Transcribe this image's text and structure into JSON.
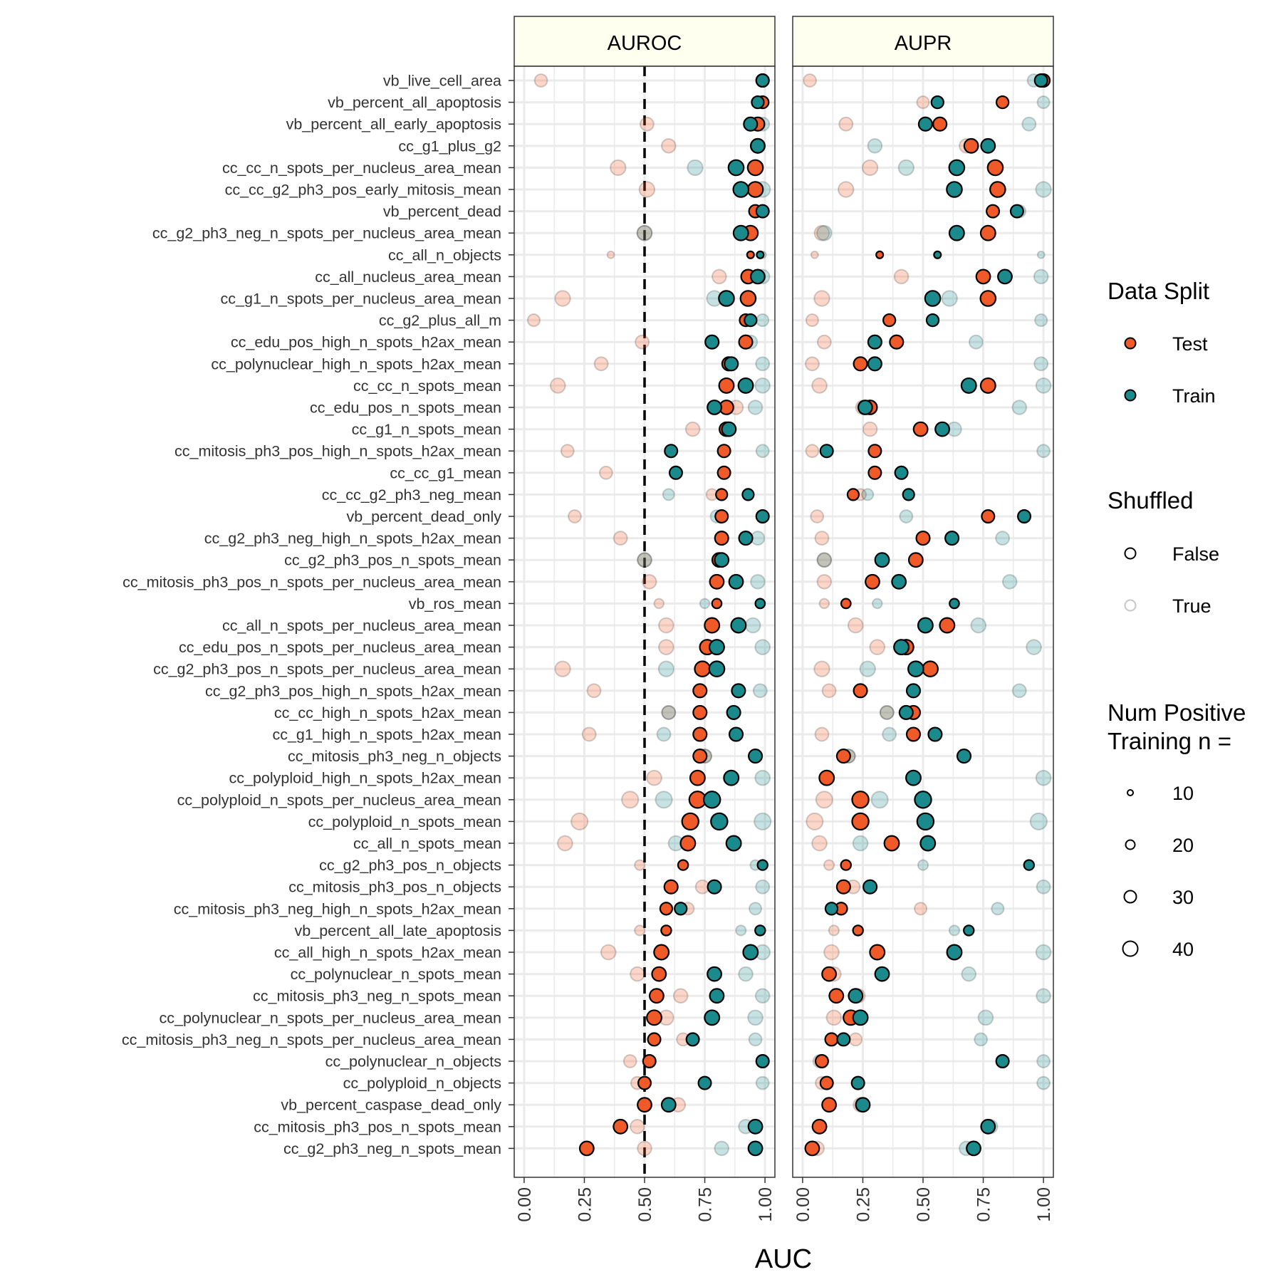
{
  "chart_data": {
    "type": "scatter",
    "facets": [
      "AUROC",
      "AUPR"
    ],
    "xlabel": "AUC",
    "xlim": [
      0,
      1
    ],
    "x_ticks": [
      "0.00",
      "0.25",
      "0.50",
      "0.75",
      "1.00"
    ],
    "reference_line": {
      "facet": "AUROC",
      "x": 0.5,
      "style": "dashed"
    },
    "colors": {
      "Test": "#f05a28",
      "Train": "#1b8a8c",
      "outline": "#000000",
      "strip_fill": "#fffff0",
      "grid": "#ebebeb"
    },
    "legends": {
      "data_split": {
        "title": "Data Split",
        "entries": [
          "Test",
          "Train"
        ]
      },
      "shuffled": {
        "title": "Shuffled",
        "entries": [
          "False",
          "True"
        ]
      },
      "size": {
        "title_lines": [
          "Num Positive",
          "Training n ="
        ],
        "entries": [
          "10",
          "20",
          "30",
          "40"
        ]
      }
    },
    "rows": [
      {
        "label": "vb_live_cell_area",
        "n": 30,
        "auroc": {
          "test": 0.99,
          "train": 0.99,
          "test_shuf": 0.07,
          "train_shuf": 0.99
        },
        "aupr": {
          "test": 1.0,
          "train": 0.99,
          "test_shuf": 0.03,
          "train_shuf": 0.96
        }
      },
      {
        "label": "vb_percent_all_apoptosis",
        "n": 28,
        "auroc": {
          "test": 0.99,
          "train": 0.97,
          "test_shuf": 0.99,
          "train_shuf": 0.99
        },
        "aupr": {
          "test": 0.83,
          "train": 0.56,
          "test_shuf": 0.5,
          "train_shuf": 1.0
        }
      },
      {
        "label": "vb_percent_all_early_apoptosis",
        "n": 33,
        "auroc": {
          "test": 0.97,
          "train": 0.94,
          "test_shuf": 0.51,
          "train_shuf": 0.99
        },
        "aupr": {
          "test": 0.57,
          "train": 0.51,
          "test_shuf": 0.18,
          "train_shuf": 0.94
        }
      },
      {
        "label": "cc_g1_plus_g2",
        "n": 35,
        "auroc": {
          "test": 0.97,
          "train": 0.97,
          "test_shuf": 0.6,
          "train_shuf": 0.97
        },
        "aupr": {
          "test": 0.7,
          "train": 0.77,
          "test_shuf": 0.68,
          "train_shuf": 0.3
        }
      },
      {
        "label": "cc_cc_n_spots_per_nucleus_area_mean",
        "n": 40,
        "auroc": {
          "test": 0.96,
          "train": 0.88,
          "test_shuf": 0.39,
          "train_shuf": 0.71
        },
        "aupr": {
          "test": 0.8,
          "train": 0.64,
          "test_shuf": 0.28,
          "train_shuf": 0.43
        }
      },
      {
        "label": "cc_cc_g2_ph3_pos_early_mitosis_mean",
        "n": 40,
        "auroc": {
          "test": 0.96,
          "train": 0.9,
          "test_shuf": 0.51,
          "train_shuf": 0.99
        },
        "aupr": {
          "test": 0.81,
          "train": 0.63,
          "test_shuf": 0.18,
          "train_shuf": 1.0
        }
      },
      {
        "label": "vb_percent_dead",
        "n": 30,
        "auroc": {
          "test": 0.96,
          "train": 0.99,
          "test_shuf": 0.99,
          "train_shuf": 0.99
        },
        "aupr": {
          "test": 0.79,
          "train": 0.89,
          "test_shuf": 0.79,
          "train_shuf": 0.9
        }
      },
      {
        "label": "cc_g2_ph3_neg_n_spots_per_nucleus_area_mean",
        "n": 38,
        "auroc": {
          "test": 0.94,
          "train": 0.9,
          "test_shuf": 0.5,
          "train_shuf": 0.5
        },
        "aupr": {
          "test": 0.77,
          "train": 0.64,
          "test_shuf": 0.08,
          "train_shuf": 0.09
        }
      },
      {
        "label": "cc_all_n_objects",
        "n": 8,
        "auroc": {
          "test": 0.94,
          "train": 0.98,
          "test_shuf": 0.36,
          "train_shuf": 0.99
        },
        "aupr": {
          "test": 0.32,
          "train": 0.56,
          "test_shuf": 0.05,
          "train_shuf": 0.99
        }
      },
      {
        "label": "cc_all_nucleus_area_mean",
        "n": 35,
        "auroc": {
          "test": 0.93,
          "train": 0.97,
          "test_shuf": 0.81,
          "train_shuf": 0.99
        },
        "aupr": {
          "test": 0.75,
          "train": 0.84,
          "test_shuf": 0.41,
          "train_shuf": 0.99
        }
      },
      {
        "label": "cc_g1_n_spots_per_nucleus_area_mean",
        "n": 40,
        "auroc": {
          "test": 0.93,
          "train": 0.84,
          "test_shuf": 0.16,
          "train_shuf": 0.79
        },
        "aupr": {
          "test": 0.77,
          "train": 0.54,
          "test_shuf": 0.08,
          "train_shuf": 0.61
        }
      },
      {
        "label": "cc_g2_plus_all_m",
        "n": 28,
        "auroc": {
          "test": 0.92,
          "train": 0.94,
          "test_shuf": 0.04,
          "train_shuf": 0.99
        },
        "aupr": {
          "test": 0.36,
          "train": 0.54,
          "test_shuf": 0.04,
          "train_shuf": 0.99
        }
      },
      {
        "label": "cc_edu_pos_high_n_spots_h2ax_mean",
        "n": 33,
        "auroc": {
          "test": 0.92,
          "train": 0.78,
          "test_shuf": 0.49,
          "train_shuf": 0.94
        },
        "aupr": {
          "test": 0.39,
          "train": 0.3,
          "test_shuf": 0.09,
          "train_shuf": 0.72
        }
      },
      {
        "label": "cc_polynuclear_high_n_spots_h2ax_mean",
        "n": 33,
        "auroc": {
          "test": 0.85,
          "train": 0.86,
          "test_shuf": 0.32,
          "train_shuf": 0.99
        },
        "aupr": {
          "test": 0.24,
          "train": 0.3,
          "test_shuf": 0.04,
          "train_shuf": 0.99
        }
      },
      {
        "label": "cc_cc_n_spots_mean",
        "n": 38,
        "auroc": {
          "test": 0.84,
          "train": 0.92,
          "test_shuf": 0.14,
          "train_shuf": 0.99
        },
        "aupr": {
          "test": 0.77,
          "train": 0.69,
          "test_shuf": 0.07,
          "train_shuf": 1.0
        }
      },
      {
        "label": "cc_edu_pos_n_spots_mean",
        "n": 35,
        "auroc": {
          "test": 0.84,
          "train": 0.79,
          "test_shuf": 0.88,
          "train_shuf": 0.96
        },
        "aupr": {
          "test": 0.28,
          "train": 0.26,
          "test_shuf": 0.25,
          "train_shuf": 0.9
        }
      },
      {
        "label": "cc_g1_n_spots_mean",
        "n": 35,
        "auroc": {
          "test": 0.84,
          "train": 0.85,
          "test_shuf": 0.7,
          "train_shuf": 0.85
        },
        "aupr": {
          "test": 0.49,
          "train": 0.58,
          "test_shuf": 0.28,
          "train_shuf": 0.63
        }
      },
      {
        "label": "cc_mitosis_ph3_pos_high_n_spots_h2ax_mean",
        "n": 30,
        "auroc": {
          "test": 0.83,
          "train": 0.61,
          "test_shuf": 0.18,
          "train_shuf": 0.99
        },
        "aupr": {
          "test": 0.3,
          "train": 0.1,
          "test_shuf": 0.04,
          "train_shuf": 1.0
        }
      },
      {
        "label": "cc_cc_g1_mean",
        "n": 30,
        "auroc": {
          "test": 0.83,
          "train": 0.63,
          "test_shuf": 0.34,
          "train_shuf": 0.63
        },
        "aupr": {
          "test": 0.3,
          "train": 0.41,
          "test_shuf": 0.3,
          "train_shuf": 0.41
        }
      },
      {
        "label": "cc_cc_g2_ph3_neg_mean",
        "n": 25,
        "auroc": {
          "test": 0.82,
          "train": 0.93,
          "test_shuf": 0.78,
          "train_shuf": 0.6
        },
        "aupr": {
          "test": 0.21,
          "train": 0.44,
          "test_shuf": 0.24,
          "train_shuf": 0.27
        }
      },
      {
        "label": "vb_percent_dead_only",
        "n": 30,
        "auroc": {
          "test": 0.82,
          "train": 0.99,
          "test_shuf": 0.21,
          "train_shuf": 0.8
        },
        "aupr": {
          "test": 0.77,
          "train": 0.92,
          "test_shuf": 0.06,
          "train_shuf": 0.43
        }
      },
      {
        "label": "cc_g2_ph3_neg_high_n_spots_h2ax_mean",
        "n": 33,
        "auroc": {
          "test": 0.82,
          "train": 0.92,
          "test_shuf": 0.4,
          "train_shuf": 0.97
        },
        "aupr": {
          "test": 0.5,
          "train": 0.62,
          "test_shuf": 0.08,
          "train_shuf": 0.83
        }
      },
      {
        "label": "cc_g2_ph3_pos_n_spots_mean",
        "n": 35,
        "auroc": {
          "test": 0.81,
          "train": 0.82,
          "test_shuf": 0.5,
          "train_shuf": 0.5
        },
        "aupr": {
          "test": 0.47,
          "train": 0.33,
          "test_shuf": 0.09,
          "train_shuf": 0.09
        }
      },
      {
        "label": "cc_mitosis_ph3_pos_n_spots_per_nucleus_area_mean",
        "n": 35,
        "auroc": {
          "test": 0.8,
          "train": 0.88,
          "test_shuf": 0.52,
          "train_shuf": 0.97
        },
        "aupr": {
          "test": 0.29,
          "train": 0.4,
          "test_shuf": 0.09,
          "train_shuf": 0.86
        }
      },
      {
        "label": "vb_ros_mean",
        "n": 18,
        "auroc": {
          "test": 0.8,
          "train": 0.98,
          "test_shuf": 0.56,
          "train_shuf": 0.75
        },
        "aupr": {
          "test": 0.18,
          "train": 0.63,
          "test_shuf": 0.09,
          "train_shuf": 0.31
        }
      },
      {
        "label": "cc_all_n_spots_per_nucleus_area_mean",
        "n": 38,
        "auroc": {
          "test": 0.78,
          "train": 0.89,
          "test_shuf": 0.59,
          "train_shuf": 0.95
        },
        "aupr": {
          "test": 0.6,
          "train": 0.51,
          "test_shuf": 0.22,
          "train_shuf": 0.73
        }
      },
      {
        "label": "cc_edu_pos_n_spots_per_nucleus_area_mean",
        "n": 38,
        "auroc": {
          "test": 0.76,
          "train": 0.8,
          "test_shuf": 0.59,
          "train_shuf": 0.99
        },
        "aupr": {
          "test": 0.43,
          "train": 0.41,
          "test_shuf": 0.31,
          "train_shuf": 0.96
        }
      },
      {
        "label": "cc_g2_ph3_pos_n_spots_per_nucleus_area_mean",
        "n": 40,
        "auroc": {
          "test": 0.74,
          "train": 0.8,
          "test_shuf": 0.16,
          "train_shuf": 0.59
        },
        "aupr": {
          "test": 0.53,
          "train": 0.47,
          "test_shuf": 0.08,
          "train_shuf": 0.27
        }
      },
      {
        "label": "cc_g2_ph3_pos_high_n_spots_h2ax_mean",
        "n": 33,
        "auroc": {
          "test": 0.73,
          "train": 0.89,
          "test_shuf": 0.29,
          "train_shuf": 0.98
        },
        "aupr": {
          "test": 0.24,
          "train": 0.46,
          "test_shuf": 0.11,
          "train_shuf": 0.9
        }
      },
      {
        "label": "cc_cc_high_n_spots_h2ax_mean",
        "n": 33,
        "auroc": {
          "test": 0.73,
          "train": 0.87,
          "test_shuf": 0.6,
          "train_shuf": 0.6
        },
        "aupr": {
          "test": 0.46,
          "train": 0.43,
          "test_shuf": 0.35,
          "train_shuf": 0.35
        }
      },
      {
        "label": "cc_g1_high_n_spots_h2ax_mean",
        "n": 33,
        "auroc": {
          "test": 0.73,
          "train": 0.88,
          "test_shuf": 0.27,
          "train_shuf": 0.58
        },
        "aupr": {
          "test": 0.46,
          "train": 0.55,
          "test_shuf": 0.08,
          "train_shuf": 0.36
        }
      },
      {
        "label": "cc_mitosis_ph3_neg_n_objects",
        "n": 33,
        "auroc": {
          "test": 0.73,
          "train": 0.96,
          "test_shuf": 0.75,
          "train_shuf": 0.75
        },
        "aupr": {
          "test": 0.17,
          "train": 0.67,
          "test_shuf": 0.19,
          "train_shuf": 0.19
        }
      },
      {
        "label": "cc_polyploid_high_n_spots_h2ax_mean",
        "n": 38,
        "auroc": {
          "test": 0.72,
          "train": 0.86,
          "test_shuf": 0.54,
          "train_shuf": 0.99
        },
        "aupr": {
          "test": 0.1,
          "train": 0.46,
          "test_shuf": 0.1,
          "train_shuf": 1.0
        }
      },
      {
        "label": "cc_polyploid_n_spots_per_nucleus_area_mean",
        "n": 45,
        "auroc": {
          "test": 0.72,
          "train": 0.78,
          "test_shuf": 0.44,
          "train_shuf": 0.58
        },
        "aupr": {
          "test": 0.24,
          "train": 0.5,
          "test_shuf": 0.09,
          "train_shuf": 0.32
        }
      },
      {
        "label": "cc_polyploid_n_spots_mean",
        "n": 45,
        "auroc": {
          "test": 0.69,
          "train": 0.81,
          "test_shuf": 0.23,
          "train_shuf": 0.99
        },
        "aupr": {
          "test": 0.24,
          "train": 0.51,
          "test_shuf": 0.05,
          "train_shuf": 0.98
        }
      },
      {
        "label": "cc_all_n_spots_mean",
        "n": 38,
        "auroc": {
          "test": 0.68,
          "train": 0.87,
          "test_shuf": 0.17,
          "train_shuf": 0.63
        },
        "aupr": {
          "test": 0.37,
          "train": 0.52,
          "test_shuf": 0.07,
          "train_shuf": 0.24
        }
      },
      {
        "label": "cc_g2_ph3_pos_n_objects",
        "n": 20,
        "auroc": {
          "test": 0.66,
          "train": 0.99,
          "test_shuf": 0.48,
          "train_shuf": 0.96
        },
        "aupr": {
          "test": 0.18,
          "train": 0.94,
          "test_shuf": 0.11,
          "train_shuf": 0.5
        }
      },
      {
        "label": "cc_mitosis_ph3_pos_n_objects",
        "n": 33,
        "auroc": {
          "test": 0.61,
          "train": 0.79,
          "test_shuf": 0.74,
          "train_shuf": 0.99
        },
        "aupr": {
          "test": 0.17,
          "train": 0.28,
          "test_shuf": 0.21,
          "train_shuf": 1.0
        }
      },
      {
        "label": "cc_mitosis_ph3_neg_high_n_spots_h2ax_mean",
        "n": 28,
        "auroc": {
          "test": 0.59,
          "train": 0.65,
          "test_shuf": 0.68,
          "train_shuf": 0.96
        },
        "aupr": {
          "test": 0.16,
          "train": 0.12,
          "test_shuf": 0.49,
          "train_shuf": 0.81
        }
      },
      {
        "label": "vb_percent_all_late_apoptosis",
        "n": 20,
        "auroc": {
          "test": 0.59,
          "train": 0.98,
          "test_shuf": 0.48,
          "train_shuf": 0.9
        },
        "aupr": {
          "test": 0.23,
          "train": 0.69,
          "test_shuf": 0.13,
          "train_shuf": 0.63
        }
      },
      {
        "label": "cc_all_high_n_spots_h2ax_mean",
        "n": 38,
        "auroc": {
          "test": 0.57,
          "train": 0.94,
          "test_shuf": 0.35,
          "train_shuf": 0.99
        },
        "aupr": {
          "test": 0.31,
          "train": 0.63,
          "test_shuf": 0.12,
          "train_shuf": 1.0
        }
      },
      {
        "label": "cc_polynuclear_n_spots_mean",
        "n": 35,
        "auroc": {
          "test": 0.56,
          "train": 0.79,
          "test_shuf": 0.47,
          "train_shuf": 0.92
        },
        "aupr": {
          "test": 0.11,
          "train": 0.33,
          "test_shuf": 0.13,
          "train_shuf": 0.69
        }
      },
      {
        "label": "cc_mitosis_ph3_neg_n_spots_mean",
        "n": 35,
        "auroc": {
          "test": 0.55,
          "train": 0.8,
          "test_shuf": 0.65,
          "train_shuf": 0.99
        },
        "aupr": {
          "test": 0.14,
          "train": 0.22,
          "test_shuf": 0.23,
          "train_shuf": 1.0
        }
      },
      {
        "label": "cc_polynuclear_n_spots_per_nucleus_area_mean",
        "n": 38,
        "auroc": {
          "test": 0.54,
          "train": 0.78,
          "test_shuf": 0.59,
          "train_shuf": 0.96
        },
        "aupr": {
          "test": 0.2,
          "train": 0.24,
          "test_shuf": 0.13,
          "train_shuf": 0.76
        }
      },
      {
        "label": "cc_mitosis_ph3_neg_n_spots_per_nucleus_area_mean",
        "n": 30,
        "auroc": {
          "test": 0.54,
          "train": 0.7,
          "test_shuf": 0.66,
          "train_shuf": 0.96
        },
        "aupr": {
          "test": 0.12,
          "train": 0.17,
          "test_shuf": 0.22,
          "train_shuf": 0.74
        }
      },
      {
        "label": "cc_polynuclear_n_objects",
        "n": 30,
        "auroc": {
          "test": 0.52,
          "train": 0.99,
          "test_shuf": 0.44,
          "train_shuf": 0.99
        },
        "aupr": {
          "test": 0.08,
          "train": 0.83,
          "test_shuf": 0.07,
          "train_shuf": 1.0
        }
      },
      {
        "label": "cc_polyploid_n_objects",
        "n": 30,
        "auroc": {
          "test": 0.5,
          "train": 0.75,
          "test_shuf": 0.47,
          "train_shuf": 0.99
        },
        "aupr": {
          "test": 0.1,
          "train": 0.23,
          "test_shuf": 0.08,
          "train_shuf": 1.0
        }
      },
      {
        "label": "vb_percent_caspase_dead_only",
        "n": 35,
        "auroc": {
          "test": 0.5,
          "train": 0.6,
          "test_shuf": 0.64,
          "train_shuf": 0.6
        },
        "aupr": {
          "test": 0.11,
          "train": 0.25,
          "test_shuf": 0.24,
          "train_shuf": 0.25
        }
      },
      {
        "label": "cc_mitosis_ph3_pos_n_spots_mean",
        "n": 35,
        "auroc": {
          "test": 0.4,
          "train": 0.96,
          "test_shuf": 0.47,
          "train_shuf": 0.92
        },
        "aupr": {
          "test": 0.07,
          "train": 0.77,
          "test_shuf": 0.07,
          "train_shuf": 0.78
        }
      },
      {
        "label": "cc_g2_ph3_neg_n_spots_mean",
        "n": 35,
        "auroc": {
          "test": 0.26,
          "train": 0.96,
          "test_shuf": 0.5,
          "train_shuf": 0.82
        },
        "aupr": {
          "test": 0.04,
          "train": 0.71,
          "test_shuf": 0.06,
          "train_shuf": 0.68
        }
      }
    ]
  }
}
